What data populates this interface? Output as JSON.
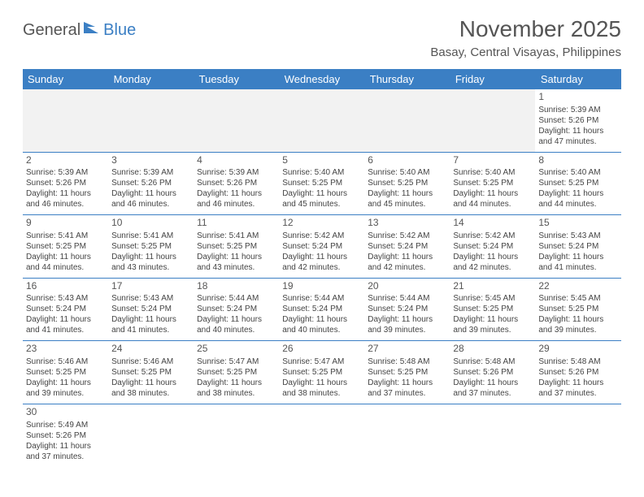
{
  "logo": {
    "text1": "General",
    "text2": "Blue"
  },
  "title": "November 2025",
  "location": "Basay, Central Visayas, Philippines",
  "colors": {
    "header_bg": "#3b7fc4",
    "header_text": "#ffffff",
    "border": "#3b7fc4",
    "text": "#444444",
    "title": "#555555"
  },
  "weekdays": [
    "Sunday",
    "Monday",
    "Tuesday",
    "Wednesday",
    "Thursday",
    "Friday",
    "Saturday"
  ],
  "weeks": [
    [
      null,
      null,
      null,
      null,
      null,
      null,
      {
        "d": "1",
        "sr": "5:39 AM",
        "ss": "5:26 PM",
        "dl": "11 hours and 47 minutes."
      }
    ],
    [
      {
        "d": "2",
        "sr": "5:39 AM",
        "ss": "5:26 PM",
        "dl": "11 hours and 46 minutes."
      },
      {
        "d": "3",
        "sr": "5:39 AM",
        "ss": "5:26 PM",
        "dl": "11 hours and 46 minutes."
      },
      {
        "d": "4",
        "sr": "5:39 AM",
        "ss": "5:26 PM",
        "dl": "11 hours and 46 minutes."
      },
      {
        "d": "5",
        "sr": "5:40 AM",
        "ss": "5:25 PM",
        "dl": "11 hours and 45 minutes."
      },
      {
        "d": "6",
        "sr": "5:40 AM",
        "ss": "5:25 PM",
        "dl": "11 hours and 45 minutes."
      },
      {
        "d": "7",
        "sr": "5:40 AM",
        "ss": "5:25 PM",
        "dl": "11 hours and 44 minutes."
      },
      {
        "d": "8",
        "sr": "5:40 AM",
        "ss": "5:25 PM",
        "dl": "11 hours and 44 minutes."
      }
    ],
    [
      {
        "d": "9",
        "sr": "5:41 AM",
        "ss": "5:25 PM",
        "dl": "11 hours and 44 minutes."
      },
      {
        "d": "10",
        "sr": "5:41 AM",
        "ss": "5:25 PM",
        "dl": "11 hours and 43 minutes."
      },
      {
        "d": "11",
        "sr": "5:41 AM",
        "ss": "5:25 PM",
        "dl": "11 hours and 43 minutes."
      },
      {
        "d": "12",
        "sr": "5:42 AM",
        "ss": "5:24 PM",
        "dl": "11 hours and 42 minutes."
      },
      {
        "d": "13",
        "sr": "5:42 AM",
        "ss": "5:24 PM",
        "dl": "11 hours and 42 minutes."
      },
      {
        "d": "14",
        "sr": "5:42 AM",
        "ss": "5:24 PM",
        "dl": "11 hours and 42 minutes."
      },
      {
        "d": "15",
        "sr": "5:43 AM",
        "ss": "5:24 PM",
        "dl": "11 hours and 41 minutes."
      }
    ],
    [
      {
        "d": "16",
        "sr": "5:43 AM",
        "ss": "5:24 PM",
        "dl": "11 hours and 41 minutes."
      },
      {
        "d": "17",
        "sr": "5:43 AM",
        "ss": "5:24 PM",
        "dl": "11 hours and 41 minutes."
      },
      {
        "d": "18",
        "sr": "5:44 AM",
        "ss": "5:24 PM",
        "dl": "11 hours and 40 minutes."
      },
      {
        "d": "19",
        "sr": "5:44 AM",
        "ss": "5:24 PM",
        "dl": "11 hours and 40 minutes."
      },
      {
        "d": "20",
        "sr": "5:44 AM",
        "ss": "5:24 PM",
        "dl": "11 hours and 39 minutes."
      },
      {
        "d": "21",
        "sr": "5:45 AM",
        "ss": "5:25 PM",
        "dl": "11 hours and 39 minutes."
      },
      {
        "d": "22",
        "sr": "5:45 AM",
        "ss": "5:25 PM",
        "dl": "11 hours and 39 minutes."
      }
    ],
    [
      {
        "d": "23",
        "sr": "5:46 AM",
        "ss": "5:25 PM",
        "dl": "11 hours and 39 minutes."
      },
      {
        "d": "24",
        "sr": "5:46 AM",
        "ss": "5:25 PM",
        "dl": "11 hours and 38 minutes."
      },
      {
        "d": "25",
        "sr": "5:47 AM",
        "ss": "5:25 PM",
        "dl": "11 hours and 38 minutes."
      },
      {
        "d": "26",
        "sr": "5:47 AM",
        "ss": "5:25 PM",
        "dl": "11 hours and 38 minutes."
      },
      {
        "d": "27",
        "sr": "5:48 AM",
        "ss": "5:25 PM",
        "dl": "11 hours and 37 minutes."
      },
      {
        "d": "28",
        "sr": "5:48 AM",
        "ss": "5:26 PM",
        "dl": "11 hours and 37 minutes."
      },
      {
        "d": "29",
        "sr": "5:48 AM",
        "ss": "5:26 PM",
        "dl": "11 hours and 37 minutes."
      }
    ],
    [
      {
        "d": "30",
        "sr": "5:49 AM",
        "ss": "5:26 PM",
        "dl": "11 hours and 37 minutes."
      },
      null,
      null,
      null,
      null,
      null,
      null
    ]
  ],
  "labels": {
    "sunrise": "Sunrise:",
    "sunset": "Sunset:",
    "daylight": "Daylight:"
  }
}
